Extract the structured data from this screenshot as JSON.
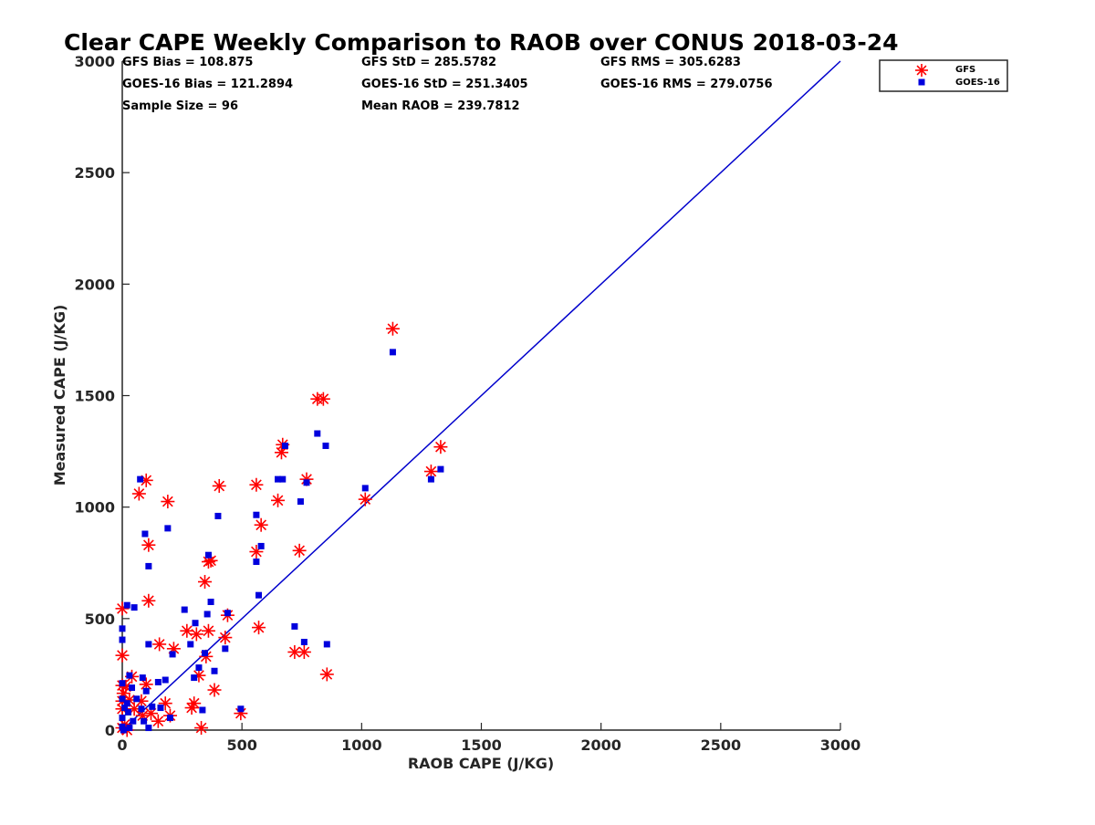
{
  "chart_data": {
    "type": "scatter",
    "title": "Clear CAPE Weekly Comparison to RAOB over CONUS 2018-03-24",
    "xlabel": "RAOB CAPE (J/KG)",
    "ylabel": "Measured CAPE (J/KG)",
    "xlim": [
      0,
      3000
    ],
    "ylim": [
      0,
      3000
    ],
    "xticks": [
      0,
      500,
      1000,
      1500,
      2000,
      2500,
      3000
    ],
    "yticks": [
      0,
      500,
      1000,
      1500,
      2000,
      2500,
      3000
    ],
    "grid": false,
    "legend_placement": "top-right",
    "stats": [
      "GFS Bias = 108.875",
      "GFS StD = 285.5782",
      "GFS RMS = 305.6283",
      "GOES-16 Bias = 121.2894",
      "GOES-16 StD = 251.3405",
      "GOES-16 RMS = 279.0756",
      "Sample Size = 96",
      "Mean RAOB = 239.7812"
    ],
    "reference_line": {
      "x": [
        0,
        3000
      ],
      "y": [
        0,
        3000
      ],
      "color": "#0000cc"
    },
    "series": [
      {
        "name": "GFS",
        "marker": "asterisk",
        "color": "#ff0000",
        "points": [
          [
            1130,
            1800
          ],
          [
            815,
            1485
          ],
          [
            840,
            1485
          ],
          [
            670,
            1280
          ],
          [
            665,
            1245
          ],
          [
            1330,
            1270
          ],
          [
            1290,
            1160
          ],
          [
            560,
            1100
          ],
          [
            405,
            1095
          ],
          [
            770,
            1125
          ],
          [
            100,
            1120
          ],
          [
            70,
            1060
          ],
          [
            190,
            1025
          ],
          [
            650,
            1030
          ],
          [
            1015,
            1035
          ],
          [
            580,
            920
          ],
          [
            110,
            830
          ],
          [
            560,
            800
          ],
          [
            740,
            805
          ],
          [
            360,
            755
          ],
          [
            370,
            760
          ],
          [
            345,
            665
          ],
          [
            110,
            580
          ],
          [
            0,
            545
          ],
          [
            570,
            460
          ],
          [
            270,
            445
          ],
          [
            360,
            445
          ],
          [
            310,
            430
          ],
          [
            430,
            415
          ],
          [
            440,
            515
          ],
          [
            155,
            385
          ],
          [
            215,
            365
          ],
          [
            720,
            350
          ],
          [
            760,
            350
          ],
          [
            350,
            330
          ],
          [
            0,
            335
          ],
          [
            855,
            250
          ],
          [
            320,
            245
          ],
          [
            40,
            240
          ],
          [
            100,
            205
          ],
          [
            0,
            200
          ],
          [
            15,
            195
          ],
          [
            5,
            165
          ],
          [
            385,
            180
          ],
          [
            0,
            130
          ],
          [
            80,
            130
          ],
          [
            30,
            135
          ],
          [
            180,
            120
          ],
          [
            300,
            120
          ],
          [
            290,
            100
          ],
          [
            0,
            95
          ],
          [
            50,
            95
          ],
          [
            120,
            75
          ],
          [
            85,
            65
          ],
          [
            200,
            65
          ],
          [
            495,
            75
          ],
          [
            150,
            40
          ],
          [
            10,
            25
          ],
          [
            0,
            10
          ],
          [
            20,
            0
          ],
          [
            330,
            10
          ]
        ]
      },
      {
        "name": "GOES-16",
        "marker": "square",
        "color": "#0000dd",
        "points": [
          [
            1130,
            1695
          ],
          [
            815,
            1330
          ],
          [
            850,
            1275
          ],
          [
            680,
            1275
          ],
          [
            1330,
            1170
          ],
          [
            1290,
            1125
          ],
          [
            1015,
            1085
          ],
          [
            770,
            1110
          ],
          [
            650,
            1125
          ],
          [
            670,
            1125
          ],
          [
            75,
            1125
          ],
          [
            560,
            965
          ],
          [
            400,
            960
          ],
          [
            190,
            905
          ],
          [
            95,
            880
          ],
          [
            580,
            825
          ],
          [
            360,
            785
          ],
          [
            110,
            735
          ],
          [
            560,
            755
          ],
          [
            745,
            1025
          ],
          [
            570,
            605
          ],
          [
            370,
            575
          ],
          [
            20,
            560
          ],
          [
            50,
            550
          ],
          [
            260,
            540
          ],
          [
            355,
            520
          ],
          [
            440,
            525
          ],
          [
            305,
            480
          ],
          [
            0,
            455
          ],
          [
            720,
            465
          ],
          [
            430,
            365
          ],
          [
            0,
            405
          ],
          [
            110,
            385
          ],
          [
            285,
            385
          ],
          [
            855,
            385
          ],
          [
            760,
            395
          ],
          [
            210,
            340
          ],
          [
            345,
            345
          ],
          [
            320,
            280
          ],
          [
            385,
            265
          ],
          [
            300,
            235
          ],
          [
            30,
            245
          ],
          [
            85,
            235
          ],
          [
            180,
            225
          ],
          [
            150,
            215
          ],
          [
            0,
            210
          ],
          [
            40,
            190
          ],
          [
            100,
            175
          ],
          [
            0,
            140
          ],
          [
            20,
            120
          ],
          [
            60,
            140
          ],
          [
            10,
            100
          ],
          [
            125,
            105
          ],
          [
            160,
            100
          ],
          [
            80,
            95
          ],
          [
            25,
            80
          ],
          [
            495,
            95
          ],
          [
            335,
            90
          ],
          [
            0,
            55
          ],
          [
            45,
            40
          ],
          [
            90,
            40
          ],
          [
            200,
            55
          ],
          [
            0,
            15
          ],
          [
            30,
            10
          ],
          [
            110,
            10
          ],
          [
            5,
            0
          ]
        ]
      }
    ]
  }
}
